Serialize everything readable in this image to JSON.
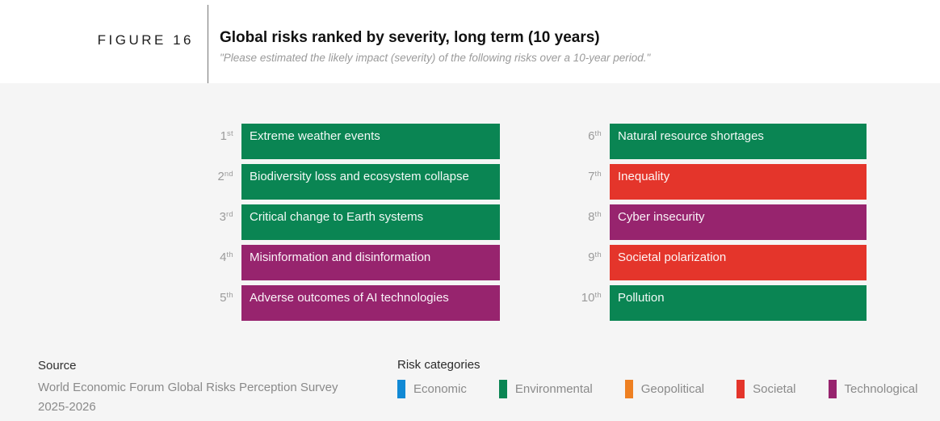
{
  "figure_label": "FIGURE 16",
  "chart_data": {
    "type": "table",
    "title": "Global risks ranked by severity, long term (10 years)",
    "subtitle": "\"Please estimated the likely impact (severity) of the following risks over a 10-year period.\"",
    "description": "Top 10 global risks ranked by severity over a 10-year period; equal-width bars colored by risk category",
    "items": [
      {
        "rank": "1",
        "suffix": "st",
        "risk": "Extreme weather events",
        "category": "Environmental",
        "color": "#0A8553"
      },
      {
        "rank": "2",
        "suffix": "nd",
        "risk": "Biodiversity loss and ecosystem collapse",
        "category": "Environmental",
        "color": "#0A8553"
      },
      {
        "rank": "3",
        "suffix": "rd",
        "risk": "Critical change to Earth systems",
        "category": "Environmental",
        "color": "#0A8553"
      },
      {
        "rank": "4",
        "suffix": "th",
        "risk": "Misinformation and disinformation",
        "category": "Technological",
        "color": "#97246E"
      },
      {
        "rank": "5",
        "suffix": "th",
        "risk": "Adverse outcomes of AI technologies",
        "category": "Technological",
        "color": "#97246E"
      },
      {
        "rank": "6",
        "suffix": "th",
        "risk": "Natural resource shortages",
        "category": "Environmental",
        "color": "#0A8553"
      },
      {
        "rank": "7",
        "suffix": "th",
        "risk": "Inequality",
        "category": "Societal",
        "color": "#E4352B"
      },
      {
        "rank": "8",
        "suffix": "th",
        "risk": "Cyber insecurity",
        "category": "Technological",
        "color": "#97246E"
      },
      {
        "rank": "9",
        "suffix": "th",
        "risk": "Societal polarization",
        "category": "Societal",
        "color": "#E4352B"
      },
      {
        "rank": "10",
        "suffix": "th",
        "risk": "Pollution",
        "category": "Environmental",
        "color": "#0A8553"
      }
    ],
    "legend": {
      "title": "Risk categories",
      "position": "bottom",
      "entries": [
        {
          "label": "Economic",
          "color": "#1189D5"
        },
        {
          "label": "Environmental",
          "color": "#0A8553"
        },
        {
          "label": "Geopolitical",
          "color": "#EE8022"
        },
        {
          "label": "Societal",
          "color": "#E4352B"
        },
        {
          "label": "Technological",
          "color": "#97246E"
        }
      ]
    },
    "layout": {
      "background": "#F5F5F5",
      "columns": 2,
      "rows_per_column": 5
    }
  },
  "source": {
    "heading": "Source",
    "lines": [
      "World Economic Forum Global Risks Perception Survey",
      "2025-2026"
    ]
  }
}
